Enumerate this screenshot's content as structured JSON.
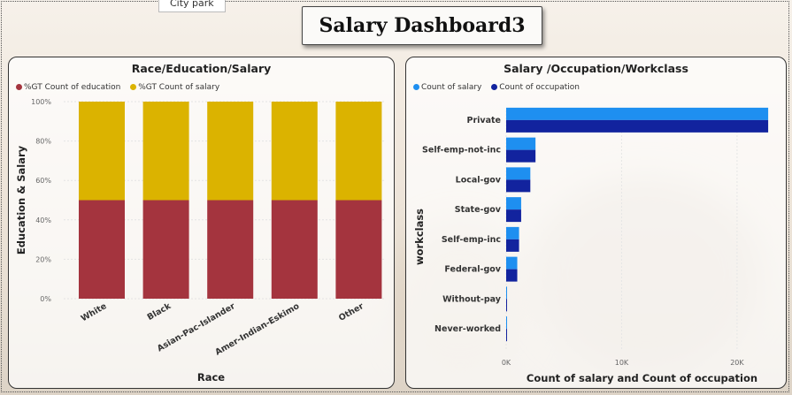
{
  "tooltip": "City park",
  "dashboard_title": "Salary Dashboard3",
  "colors": {
    "education": "#a4343e",
    "salary": "#dbb300",
    "salary_count": "#1e8ff0",
    "occupation_count": "#12239e"
  },
  "chart_data": [
    {
      "type": "bar",
      "stacked": "100%",
      "title": "Race/Education/Salary",
      "categories": [
        "White",
        "Black",
        "Asian-Pac-Islander",
        "Amer-Indian-Eskimo",
        "Other"
      ],
      "series": [
        {
          "name": "%GT Count of education",
          "values": [
            50,
            50,
            50,
            50,
            50
          ]
        },
        {
          "name": "%GT Count of salary",
          "values": [
            50,
            50,
            50,
            50,
            50
          ]
        }
      ],
      "yticks": [
        "0%",
        "20%",
        "40%",
        "60%",
        "80%",
        "100%"
      ],
      "xlabel": "Race",
      "ylabel": "Education & Salary",
      "ylim": [
        0,
        100
      ],
      "legend": "top-left"
    },
    {
      "type": "bar",
      "orientation": "horizontal",
      "title": "Salary /Occupation/Workclass",
      "categories": [
        "Private",
        "Self-emp-not-inc",
        "Local-gov",
        "State-gov",
        "Self-emp-inc",
        "Federal-gov",
        "Without-pay",
        "Never-worked"
      ],
      "series": [
        {
          "name": "Count of salary",
          "values": [
            22696,
            2541,
            2093,
            1298,
            1116,
            960,
            14,
            7
          ]
        },
        {
          "name": "Count of occupation",
          "values": [
            22696,
            2541,
            2093,
            1298,
            1116,
            960,
            14,
            7
          ]
        }
      ],
      "xticks": [
        "0K",
        "10K",
        "20K"
      ],
      "xlabel": "Count of salary and Count of occupation",
      "ylabel": "workclass",
      "xlim": [
        0,
        22000
      ],
      "legend": "top-left"
    }
  ]
}
